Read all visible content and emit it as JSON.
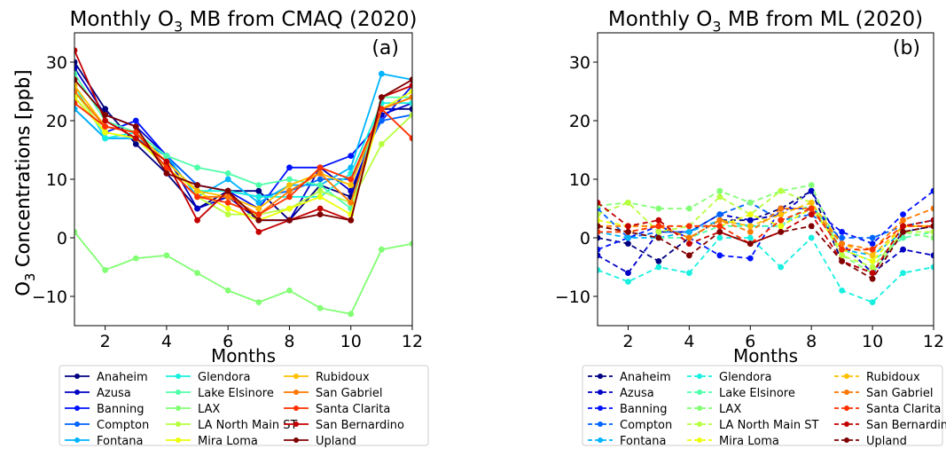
{
  "chart_data": [
    {
      "type": "line",
      "panel_label": "(a)",
      "title": "Monthly O3 MB from CMAQ (2020)",
      "title_parts": {
        "pre": "Monthly O",
        "sub": "3",
        "post": " MB from CMAQ (2020)"
      },
      "xlabel": "Months",
      "ylabel": "O3 Concentrations [ppb]",
      "ylabel_parts": {
        "pre": "O",
        "sub": "3",
        "post": " Concentrations [ppb]"
      },
      "xlim": [
        1,
        12
      ],
      "ylim": [
        -15,
        35
      ],
      "xticks": [
        2,
        4,
        6,
        8,
        10,
        12
      ],
      "yticks": [
        -10,
        0,
        10,
        20,
        30
      ],
      "line_style": "solid",
      "x": [
        1,
        2,
        3,
        4,
        5,
        6,
        7,
        8,
        9,
        10,
        11,
        12
      ],
      "series": [
        {
          "name": "Anaheim",
          "color": "#000080",
          "values": [
            30,
            22,
            16,
            11,
            5,
            8,
            8,
            3,
            9,
            7,
            22,
            22
          ]
        },
        {
          "name": "Azusa",
          "color": "#0000c4",
          "values": [
            29,
            21,
            19,
            14,
            5,
            7,
            3,
            3,
            12,
            8,
            21,
            23
          ]
        },
        {
          "name": "Banning",
          "color": "#0012ff",
          "values": [
            24,
            18,
            20,
            14,
            9,
            8,
            5,
            12,
            12,
            14,
            20,
            26
          ]
        },
        {
          "name": "Compton",
          "color": "#0064ff",
          "values": [
            22,
            17,
            17,
            14,
            9,
            8,
            7,
            8,
            10,
            10,
            20,
            21
          ]
        },
        {
          "name": "Fontana",
          "color": "#00b4ff",
          "values": [
            22,
            17,
            17,
            14,
            7,
            10,
            6,
            9,
            9,
            12,
            28,
            27
          ]
        },
        {
          "name": "Glendora",
          "color": "#17f0e0",
          "values": [
            26,
            17,
            18,
            13,
            8,
            8,
            7,
            7,
            7,
            11,
            23,
            23
          ]
        },
        {
          "name": "Lake Elsinore",
          "color": "#4dffa9",
          "values": [
            28,
            20,
            18,
            14,
            12,
            11,
            9,
            10,
            9,
            5,
            24,
            24
          ]
        },
        {
          "name": "LAX",
          "color": "#82ff74",
          "values": [
            1,
            -5.5,
            -3.5,
            -3,
            -6,
            -9,
            -11,
            -9,
            -12,
            -13,
            -2,
            -1
          ]
        },
        {
          "name": "LA North Main ST",
          "color": "#b7ff3f",
          "values": [
            25,
            18,
            17,
            12,
            7,
            4,
            4,
            5,
            8,
            6,
            16,
            21
          ]
        },
        {
          "name": "Mira Loma",
          "color": "#ecff0a",
          "values": [
            24,
            18,
            17,
            12,
            8,
            5,
            3,
            5,
            7,
            4,
            22,
            25
          ]
        },
        {
          "name": "Rubidoux",
          "color": "#ffc000",
          "values": [
            26,
            19,
            18,
            13,
            8,
            7,
            5,
            9,
            11,
            9,
            22,
            24
          ]
        },
        {
          "name": "San Gabriel",
          "color": "#ff7800",
          "values": [
            25,
            19,
            18,
            12,
            7,
            7,
            4,
            8,
            11,
            6,
            22,
            24
          ]
        },
        {
          "name": "Santa Clarita",
          "color": "#ff3000",
          "values": [
            23,
            19,
            18,
            12,
            7,
            6,
            4,
            7,
            12,
            10,
            22,
            17
          ]
        },
        {
          "name": "San Bernardino",
          "color": "#c40000",
          "values": [
            32,
            20,
            17,
            13,
            3,
            8,
            1,
            3,
            5,
            3,
            24,
            26
          ]
        },
        {
          "name": "Upland",
          "color": "#800000",
          "values": [
            27,
            21,
            19,
            11,
            9,
            8,
            3,
            3,
            4,
            3,
            24,
            27
          ]
        }
      ]
    },
    {
      "type": "line",
      "panel_label": "(b)",
      "title": "Monthly O3 MB from ML (2020)",
      "title_parts": {
        "pre": "Monthly O",
        "sub": "3",
        "post": " MB from ML (2020)"
      },
      "xlabel": "Months",
      "ylabel": "O3 Concentrations [ppb]",
      "ylabel_parts": {
        "pre": "O",
        "sub": "3",
        "post": " Concentrations [ppb]"
      },
      "xlim": [
        1,
        12
      ],
      "ylim": [
        -15,
        35
      ],
      "xticks": [
        2,
        4,
        6,
        8,
        10,
        12
      ],
      "yticks": [
        -10,
        0,
        10,
        20,
        30
      ],
      "line_style": "dashed",
      "x": [
        1,
        2,
        3,
        4,
        5,
        6,
        7,
        8,
        9,
        10,
        11,
        12
      ],
      "series": [
        {
          "name": "Anaheim",
          "color": "#000080",
          "values": [
            0,
            -1,
            -4,
            0,
            3,
            3,
            5,
            8,
            -4,
            -6,
            1,
            2
          ]
        },
        {
          "name": "Azusa",
          "color": "#0000c4",
          "values": [
            -3,
            -6,
            1,
            1,
            4,
            3,
            4,
            8,
            -1,
            -6,
            -2,
            -3
          ]
        },
        {
          "name": "Banning",
          "color": "#0012ff",
          "values": [
            -2,
            0,
            2,
            0,
            -3,
            -3.5,
            5,
            5,
            1,
            -1,
            4,
            8
          ]
        },
        {
          "name": "Compton",
          "color": "#0064ff",
          "values": [
            5,
            0,
            1,
            1,
            4,
            6,
            3,
            4,
            0,
            0,
            2,
            3
          ]
        },
        {
          "name": "Fontana",
          "color": "#00b4ff",
          "values": [
            1,
            0,
            0,
            1,
            3,
            2,
            2,
            5,
            -2,
            -3,
            1,
            2
          ]
        },
        {
          "name": "Glendora",
          "color": "#17f0e0",
          "values": [
            -5.5,
            -7.5,
            -5,
            -6,
            0,
            0,
            -5,
            0,
            -9,
            -11,
            -6,
            -5
          ]
        },
        {
          "name": "Lake Elsinore",
          "color": "#4dffa9",
          "values": [
            1,
            1,
            0,
            0,
            2,
            2,
            2,
            6,
            -2,
            -4,
            0,
            1
          ]
        },
        {
          "name": "LAX",
          "color": "#82ff74",
          "values": [
            5.5,
            6,
            5,
            5,
            8,
            6,
            8,
            9,
            -3,
            -6,
            1,
            0
          ]
        },
        {
          "name": "LA North Main ST",
          "color": "#b7ff3f",
          "values": [
            4,
            6,
            1,
            2,
            7,
            4,
            8,
            6,
            -3,
            -5,
            1,
            1
          ]
        },
        {
          "name": "Mira Loma",
          "color": "#ecff0a",
          "values": [
            3,
            2,
            2,
            2,
            2,
            4,
            2,
            5,
            -2,
            -4,
            2,
            2
          ]
        },
        {
          "name": "Rubidoux",
          "color": "#ffc000",
          "values": [
            2,
            1,
            2,
            0,
            3,
            2,
            4,
            6,
            -1,
            -3,
            2,
            2
          ]
        },
        {
          "name": "San Gabriel",
          "color": "#ff7800",
          "values": [
            2,
            2,
            2,
            0,
            3,
            1,
            5,
            5,
            -1,
            -2,
            3,
            5
          ]
        },
        {
          "name": "Santa Clarita",
          "color": "#ff3000",
          "values": [
            1,
            1,
            2,
            2,
            2,
            -1,
            3,
            5,
            -2,
            -2,
            2,
            2
          ]
        },
        {
          "name": "San Bernardino",
          "color": "#c40000",
          "values": [
            6,
            2,
            3,
            -1,
            1,
            -1,
            1,
            4,
            -4,
            -6,
            2,
            3
          ]
        },
        {
          "name": "Upland",
          "color": "#800000",
          "values": [
            2,
            1,
            0,
            -3,
            1,
            -1,
            1,
            2,
            -4,
            -7,
            1,
            2
          ]
        }
      ]
    }
  ]
}
